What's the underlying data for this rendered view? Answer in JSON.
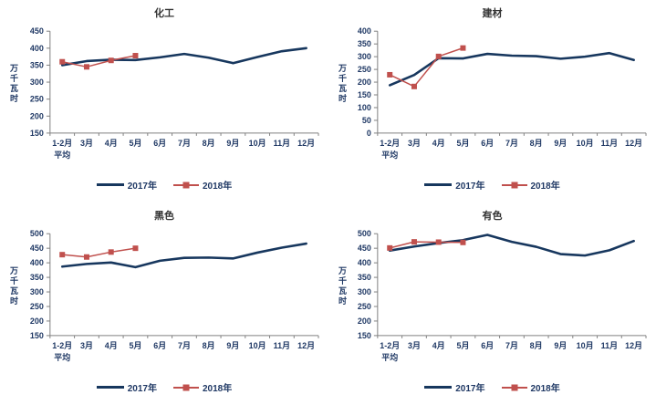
{
  "colors": {
    "series_2017": "#17375e",
    "series_2018": "#c0504d",
    "axis_line": "#808080",
    "tick_text": "#1f3864",
    "title_text": "#333333",
    "background": "#ffffff"
  },
  "shared": {
    "ylabel": "万千瓦时",
    "x_labels": [
      "1-2月",
      "3月",
      "4月",
      "5月",
      "6月",
      "7月",
      "8月",
      "9月",
      "10月",
      "11月",
      "12月"
    ],
    "x_first_label_line2": "平均",
    "legend_labels": [
      "2017年",
      "2018年"
    ]
  },
  "chart_data": [
    {
      "type": "line",
      "title": "化工",
      "ylabel": "万千瓦时",
      "ylim": [
        150,
        450
      ],
      "ytick_step": 50,
      "x_labels": [
        "1-2月",
        "3月",
        "4月",
        "5月",
        "6月",
        "7月",
        "8月",
        "9月",
        "10月",
        "11月",
        "12月"
      ],
      "x_first_label_line2": "平均",
      "legend_position": "bottom",
      "grid": false,
      "series": [
        {
          "name": "2017年",
          "color": "#17375e",
          "marker": "none",
          "values": [
            350,
            362,
            366,
            365,
            373,
            383,
            372,
            356,
            374,
            391,
            400
          ]
        },
        {
          "name": "2018年",
          "color": "#c0504d",
          "marker": "square",
          "values": [
            360,
            345,
            364,
            378
          ]
        }
      ]
    },
    {
      "type": "line",
      "title": "建材",
      "ylabel": "万千瓦时",
      "ylim": [
        0,
        400
      ],
      "ytick_step": 50,
      "x_labels": [
        "1-2月",
        "3月",
        "4月",
        "5月",
        "6月",
        "7月",
        "8月",
        "9月",
        "10月",
        "11月",
        "12月"
      ],
      "x_first_label_line2": "平均",
      "legend_position": "bottom",
      "grid": false,
      "series": [
        {
          "name": "2017年",
          "color": "#17375e",
          "marker": "none",
          "values": [
            188,
            228,
            294,
            293,
            311,
            304,
            302,
            292,
            300,
            314,
            287
          ]
        },
        {
          "name": "2018年",
          "color": "#c0504d",
          "marker": "square",
          "values": [
            229,
            183,
            301,
            334
          ]
        }
      ]
    },
    {
      "type": "line",
      "title": "黑色",
      "ylabel": "万千瓦时",
      "ylim": [
        150,
        500
      ],
      "ytick_step": 50,
      "x_labels": [
        "1-2月",
        "3月",
        "4月",
        "5月",
        "6月",
        "7月",
        "8月",
        "9月",
        "10月",
        "11月",
        "12月"
      ],
      "x_first_label_line2": "平均",
      "legend_position": "bottom",
      "grid": false,
      "series": [
        {
          "name": "2017年",
          "color": "#17375e",
          "marker": "none",
          "values": [
            387,
            396,
            401,
            385,
            407,
            417,
            418,
            415,
            435,
            452,
            466
          ]
        },
        {
          "name": "2018年",
          "color": "#c0504d",
          "marker": "square",
          "values": [
            428,
            420,
            437,
            450
          ]
        }
      ]
    },
    {
      "type": "line",
      "title": "有色",
      "ylabel": "万千瓦时",
      "ylim": [
        150,
        500
      ],
      "ytick_step": 50,
      "x_labels": [
        "1-2月",
        "3月",
        "4月",
        "5月",
        "6月",
        "7月",
        "8月",
        "9月",
        "10月",
        "11月",
        "12月"
      ],
      "x_first_label_line2": "平均",
      "legend_position": "bottom",
      "grid": false,
      "series": [
        {
          "name": "2017年",
          "color": "#17375e",
          "marker": "none",
          "values": [
            442,
            456,
            468,
            478,
            496,
            472,
            455,
            430,
            425,
            443,
            475
          ]
        },
        {
          "name": "2018年",
          "color": "#c0504d",
          "marker": "square",
          "values": [
            451,
            472,
            471,
            470
          ]
        }
      ]
    }
  ]
}
